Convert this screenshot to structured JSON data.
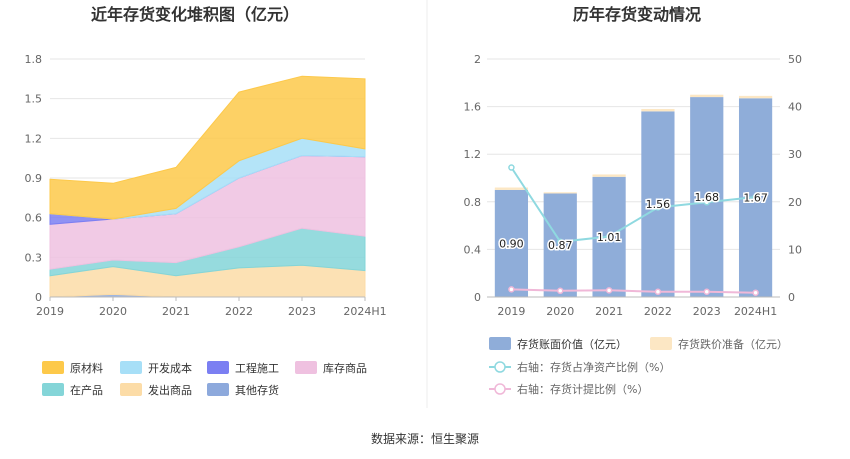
{
  "source": "数据来源：恒生聚源",
  "chart_data": [
    {
      "type": "area",
      "stacked": true,
      "title": "近年存货变化堆积图（亿元）",
      "categories": [
        "2019",
        "2020",
        "2021",
        "2022",
        "2023",
        "2024H1"
      ],
      "ylim": [
        0,
        1.8
      ],
      "yticks": [
        "0",
        "0.3",
        "0.6",
        "0.9",
        "1.2",
        "1.5",
        "1.8"
      ],
      "grid": true,
      "legend_position": "bottom",
      "series": [
        {
          "name": "原材料",
          "color": "#fdc94a",
          "values": [
            0.26,
            0.27,
            0.31,
            0.52,
            0.47,
            0.53
          ]
        },
        {
          "name": "开发成本",
          "color": "#a7dff7",
          "values": [
            0.0,
            0.0,
            0.04,
            0.13,
            0.13,
            0.06
          ]
        },
        {
          "name": "工程施工",
          "color": "#7b7ff2",
          "values": [
            0.08,
            0.0,
            0.0,
            0.0,
            0.0,
            0.0
          ]
        },
        {
          "name": "库存商品",
          "color": "#efc1e0",
          "values": [
            0.34,
            0.31,
            0.37,
            0.52,
            0.55,
            0.6
          ]
        },
        {
          "name": "在产品",
          "color": "#84d5d8",
          "values": [
            0.05,
            0.05,
            0.1,
            0.16,
            0.28,
            0.26
          ]
        },
        {
          "name": "发出商品",
          "color": "#fcdca7",
          "values": [
            0.16,
            0.21,
            0.16,
            0.22,
            0.24,
            0.2
          ]
        },
        {
          "name": "其他存货",
          "color": "#8da9dc",
          "values": [
            0.0,
            0.02,
            0.0,
            0.0,
            0.0,
            0.0
          ]
        }
      ]
    },
    {
      "type": "bar",
      "stacked": true,
      "title": "历年存货变动情况",
      "categories": [
        "2019",
        "2020",
        "2021",
        "2022",
        "2023",
        "2024H1"
      ],
      "ylim": [
        0,
        2
      ],
      "yticks": [
        "0",
        "0.4",
        "0.8",
        "1.2",
        "1.6",
        "2"
      ],
      "y2lim": [
        0,
        50
      ],
      "y2ticks": [
        "0",
        "10",
        "20",
        "30",
        "40",
        "50"
      ],
      "grid": true,
      "legend_position": "bottom",
      "series": [
        {
          "name": "存货账面价值（亿元）",
          "color": "#8fadd9",
          "values": [
            0.9,
            0.87,
            1.01,
            1.56,
            1.68,
            1.67
          ],
          "labels": [
            "0.90",
            "0.87",
            "1.01",
            "1.56",
            "1.68",
            "1.67"
          ]
        },
        {
          "name": "存货跌价准备（亿元）",
          "color": "#fce7c4",
          "values": [
            0.02,
            0.01,
            0.02,
            0.02,
            0.02,
            0.02
          ]
        }
      ],
      "lines": [
        {
          "name": "右轴：存货占净资产比例（%）",
          "color": "#8fd9e0",
          "axis": "right",
          "values": [
            27.2,
            11.6,
            12.7,
            18.8,
            19.9,
            21.0
          ]
        },
        {
          "name": "右轴：存货计提比例（%）",
          "color": "#f0b8d8",
          "axis": "right",
          "values": [
            1.6,
            1.3,
            1.4,
            1.1,
            1.1,
            0.9
          ]
        }
      ]
    }
  ]
}
